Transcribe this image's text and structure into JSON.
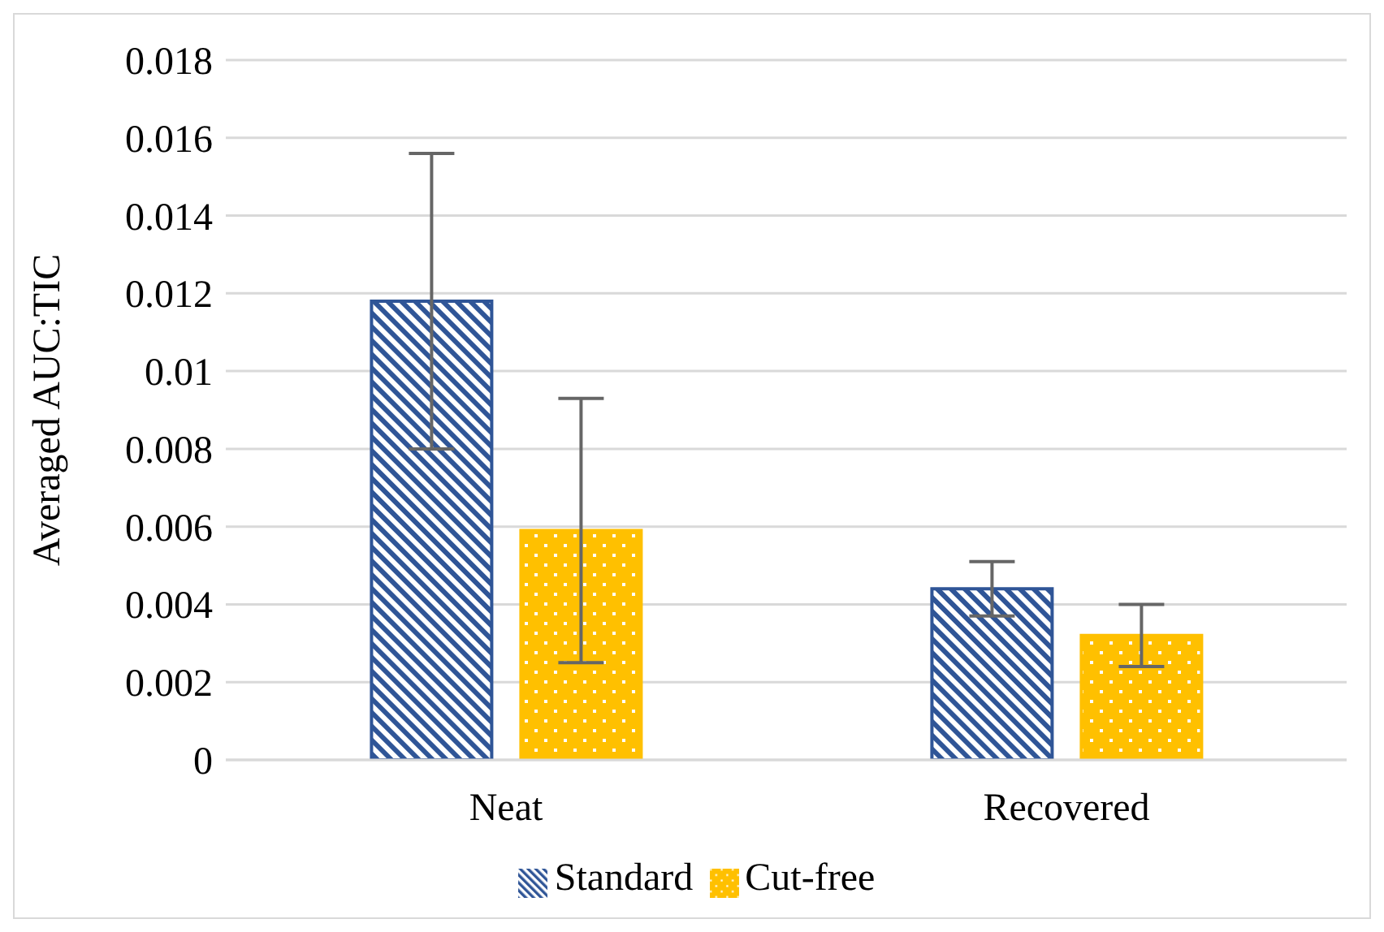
{
  "chart_data": {
    "type": "bar",
    "ylabel": "Averaged AUC:TIC",
    "categories": [
      "Neat",
      "Recovered"
    ],
    "series": [
      {
        "name": "Standard",
        "color": "#2f5597",
        "values": [
          0.0118,
          0.0044
        ],
        "errors": [
          0.0038,
          0.0007
        ]
      },
      {
        "name": "Cut-free",
        "color": "#ffc000",
        "values": [
          0.0059,
          0.0032
        ],
        "errors": [
          0.0034,
          0.0008
        ]
      }
    ],
    "ylim": [
      0,
      0.018
    ],
    "yticks": [
      0,
      0.002,
      0.004,
      0.006,
      0.008,
      0.01,
      0.012,
      0.014,
      0.016,
      0.018
    ],
    "grid": "y",
    "legend": "bottom"
  }
}
